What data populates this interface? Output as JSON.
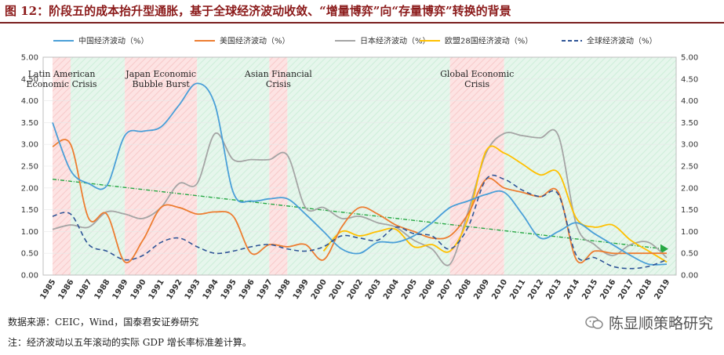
{
  "title": "图 12：阶段五的成本抬升型通胀，基于全球经济波动收敛、“增量博弈”向“存量博弈”转换的背景",
  "footer": {
    "source": "数据来源：CEIC，Wind，国泰君安证券研究",
    "note": "注：经济波动以五年滚动的实际 GDP 增长率标准差计算。"
  },
  "brand": "陈显顺策略研究",
  "colors": {
    "china": "#4a9fd8",
    "us": "#ed7d31",
    "japan": "#a5a5a5",
    "eu": "#ffc000",
    "global": "#2f5597",
    "trend": "#27a844",
    "crisis_band": "#fde1e1",
    "calm_band": "#e3f5e9"
  },
  "chart_data": {
    "type": "line",
    "x": [
      1985,
      1986,
      1987,
      1988,
      1989,
      1990,
      1991,
      1992,
      1993,
      1994,
      1995,
      1996,
      1997,
      1998,
      1999,
      2000,
      2001,
      2002,
      2003,
      2004,
      2005,
      2006,
      2007,
      2008,
      2009,
      2010,
      2011,
      2012,
      2013,
      2014,
      2015,
      2016,
      2017,
      2018,
      2019
    ],
    "ylim": [
      0,
      5
    ],
    "yticks": [
      "0.00",
      "0.50",
      "1.00",
      "1.50",
      "2.00",
      "2.50",
      "3.00",
      "3.50",
      "4.00",
      "4.50",
      "5.00"
    ],
    "series": [
      {
        "name": "中国经济波动（%）",
        "key": "china",
        "dash": false,
        "values": [
          3.5,
          2.4,
          2.1,
          2.05,
          3.2,
          3.3,
          3.4,
          3.9,
          4.4,
          3.9,
          1.9,
          1.7,
          1.75,
          1.75,
          1.4,
          1.0,
          0.6,
          0.5,
          0.75,
          0.75,
          0.9,
          1.2,
          1.55,
          1.7,
          1.85,
          1.9,
          1.4,
          0.85,
          1.0,
          1.2,
          0.95,
          0.7,
          0.45,
          0.25,
          0.25
        ]
      },
      {
        "name": "美国经济波动（%）",
        "key": "us",
        "dash": false,
        "values": [
          2.95,
          3.0,
          1.3,
          1.4,
          0.3,
          0.8,
          1.55,
          1.55,
          1.4,
          1.45,
          1.35,
          0.5,
          0.7,
          0.65,
          0.7,
          0.35,
          1.1,
          1.55,
          1.4,
          1.15,
          1.0,
          0.85,
          0.9,
          1.4,
          2.2,
          2.0,
          1.9,
          1.8,
          1.9,
          0.35,
          0.55,
          0.5,
          0.5,
          0.5,
          0.5
        ]
      },
      {
        "name": "日本经济波动（%）",
        "key": "japan",
        "dash": false,
        "values": [
          1.05,
          1.15,
          1.1,
          1.45,
          1.4,
          1.3,
          1.55,
          2.1,
          2.1,
          3.25,
          2.65,
          2.65,
          2.65,
          2.75,
          1.55,
          1.55,
          1.3,
          1.35,
          1.2,
          1.1,
          0.8,
          0.6,
          0.25,
          1.45,
          2.8,
          3.25,
          3.2,
          3.15,
          3.2,
          1.15,
          0.7,
          0.45,
          0.7,
          0.75,
          0.4
        ]
      },
      {
        "name": "欧盟28国经济波动（%）",
        "key": "eu",
        "dash": false,
        "values": [
          null,
          null,
          null,
          null,
          null,
          null,
          null,
          null,
          null,
          null,
          null,
          null,
          null,
          null,
          null,
          0.55,
          1.0,
          0.9,
          1.0,
          1.05,
          0.65,
          0.7,
          0.55,
          1.3,
          2.85,
          2.8,
          2.55,
          2.3,
          2.35,
          1.3,
          1.1,
          1.15,
          0.8,
          0.55,
          0.3
        ]
      },
      {
        "name": "全球经济波动（%）",
        "key": "global",
        "dash": true,
        "values": [
          1.35,
          1.4,
          0.7,
          0.55,
          0.35,
          0.45,
          0.75,
          0.85,
          0.65,
          0.5,
          0.55,
          0.65,
          0.7,
          0.6,
          0.55,
          0.65,
          0.9,
          0.85,
          0.8,
          1.1,
          0.95,
          0.9,
          0.6,
          1.1,
          2.2,
          2.2,
          1.95,
          1.8,
          1.85,
          0.45,
          0.4,
          0.2,
          0.15,
          0.2,
          0.35
        ]
      }
    ],
    "trend": {
      "from": [
        1985,
        2.2
      ],
      "to": [
        2019,
        0.6
      ]
    },
    "bands": [
      {
        "kind": "crisis",
        "from": 1985,
        "to": 1986,
        "label": [
          "Latin American",
          "Economic Crisis"
        ]
      },
      {
        "kind": "calm",
        "from": 1986,
        "to": 1989,
        "label": []
      },
      {
        "kind": "crisis",
        "from": 1989,
        "to": 1993,
        "label": [
          "Japan Economic",
          "Bubble Burst"
        ]
      },
      {
        "kind": "calm",
        "from": 1993,
        "to": 1997,
        "label": []
      },
      {
        "kind": "crisis",
        "from": 1997,
        "to": 1998,
        "label": [
          "Asian Financial",
          "Crisis"
        ]
      },
      {
        "kind": "calm",
        "from": 1998,
        "to": 2007,
        "label": []
      },
      {
        "kind": "crisis",
        "from": 2007,
        "to": 2010,
        "label": [
          "Global Economic",
          "Crisis"
        ]
      },
      {
        "kind": "calm",
        "from": 2010,
        "to": 2019.5,
        "label": []
      }
    ],
    "legend_position": "top"
  }
}
